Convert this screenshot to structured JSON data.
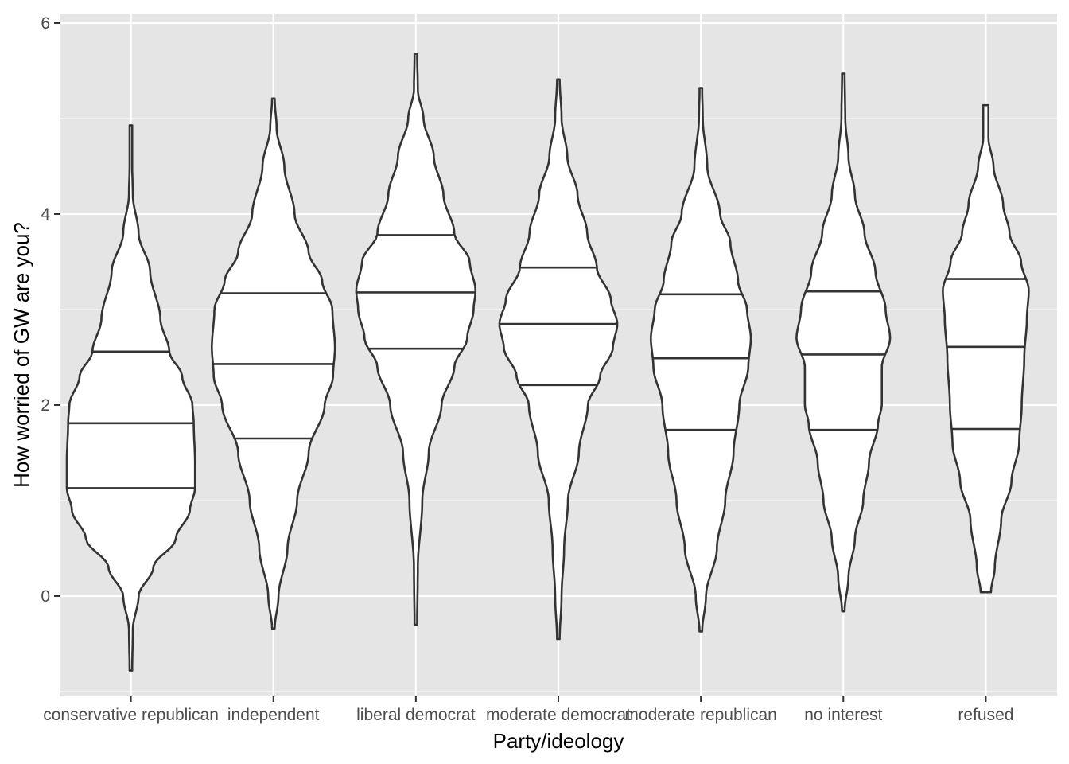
{
  "chart_data": {
    "type": "violin",
    "xlabel": "Party/ideology",
    "ylabel": "How worried of GW are you?",
    "ylim": [
      -1.05,
      6.1
    ],
    "y_ticks": [
      0,
      2,
      4,
      6
    ],
    "y_minor_ticks": [
      -1,
      1,
      3,
      5
    ],
    "grid": true,
    "legend": "none",
    "draw_quantiles": [
      0.25,
      0.5,
      0.75
    ],
    "categories": [
      "conservative republican",
      "independent",
      "liberal democrat",
      "moderate democrat",
      "moderate republican",
      "no interest",
      "refused"
    ],
    "series": [
      {
        "category": "conservative republican",
        "min": -0.78,
        "max": 4.93,
        "quantiles": [
          1.13,
          1.81,
          2.56
        ],
        "density": [
          [
            -0.78,
            0.02
          ],
          [
            -0.35,
            0.03
          ],
          [
            0.0,
            0.12
          ],
          [
            0.3,
            0.35
          ],
          [
            0.6,
            0.7
          ],
          [
            0.9,
            0.92
          ],
          [
            1.13,
            1.0
          ],
          [
            1.4,
            1.0
          ],
          [
            1.81,
            0.98
          ],
          [
            2.0,
            0.96
          ],
          [
            2.3,
            0.8
          ],
          [
            2.56,
            0.6
          ],
          [
            2.9,
            0.46
          ],
          [
            3.4,
            0.3
          ],
          [
            3.8,
            0.12
          ],
          [
            4.2,
            0.03
          ],
          [
            4.5,
            0.02
          ],
          [
            4.93,
            0.02
          ]
        ]
      },
      {
        "category": "independent",
        "min": -0.34,
        "max": 5.21,
        "quantiles": [
          1.65,
          2.43,
          3.17
        ],
        "density": [
          [
            -0.34,
            0.02
          ],
          [
            0.0,
            0.08
          ],
          [
            0.5,
            0.22
          ],
          [
            1.0,
            0.37
          ],
          [
            1.5,
            0.55
          ],
          [
            2.0,
            0.8
          ],
          [
            2.3,
            0.93
          ],
          [
            2.6,
            0.96
          ],
          [
            3.0,
            0.92
          ],
          [
            3.3,
            0.76
          ],
          [
            3.6,
            0.55
          ],
          [
            4.0,
            0.33
          ],
          [
            4.5,
            0.17
          ],
          [
            4.9,
            0.05
          ],
          [
            5.21,
            0.02
          ]
        ]
      },
      {
        "category": "liberal democrat",
        "min": -0.3,
        "max": 5.68,
        "quantiles": [
          2.59,
          3.18,
          3.78
        ],
        "density": [
          [
            -0.3,
            0.02
          ],
          [
            0.3,
            0.03
          ],
          [
            1.0,
            0.1
          ],
          [
            1.5,
            0.2
          ],
          [
            2.0,
            0.4
          ],
          [
            2.4,
            0.6
          ],
          [
            2.7,
            0.8
          ],
          [
            3.0,
            0.9
          ],
          [
            3.2,
            0.93
          ],
          [
            3.5,
            0.84
          ],
          [
            3.8,
            0.6
          ],
          [
            4.2,
            0.43
          ],
          [
            4.6,
            0.28
          ],
          [
            5.0,
            0.12
          ],
          [
            5.3,
            0.03
          ],
          [
            5.68,
            0.02
          ]
        ]
      },
      {
        "category": "moderate democrat",
        "min": -0.45,
        "max": 5.41,
        "quantiles": [
          2.21,
          2.85,
          3.44
        ],
        "density": [
          [
            -0.45,
            0.02
          ],
          [
            0.0,
            0.05
          ],
          [
            0.5,
            0.09
          ],
          [
            1.0,
            0.15
          ],
          [
            1.5,
            0.32
          ],
          [
            2.0,
            0.46
          ],
          [
            2.3,
            0.65
          ],
          [
            2.6,
            0.85
          ],
          [
            2.85,
            0.92
          ],
          [
            3.1,
            0.82
          ],
          [
            3.44,
            0.6
          ],
          [
            3.8,
            0.45
          ],
          [
            4.2,
            0.3
          ],
          [
            4.6,
            0.14
          ],
          [
            5.0,
            0.05
          ],
          [
            5.41,
            0.02
          ]
        ]
      },
      {
        "category": "moderate republican",
        "min": -0.37,
        "max": 5.32,
        "quantiles": [
          1.74,
          2.49,
          3.16
        ],
        "density": [
          [
            -0.37,
            0.02
          ],
          [
            0.0,
            0.08
          ],
          [
            0.5,
            0.25
          ],
          [
            1.0,
            0.38
          ],
          [
            1.5,
            0.51
          ],
          [
            2.0,
            0.6
          ],
          [
            2.4,
            0.74
          ],
          [
            2.7,
            0.78
          ],
          [
            3.0,
            0.72
          ],
          [
            3.3,
            0.58
          ],
          [
            3.7,
            0.46
          ],
          [
            4.0,
            0.3
          ],
          [
            4.5,
            0.1
          ],
          [
            5.0,
            0.03
          ],
          [
            5.32,
            0.02
          ]
        ]
      },
      {
        "category": "no interest",
        "min": -0.16,
        "max": 5.47,
        "quantiles": [
          1.74,
          2.53,
          3.19
        ],
        "density": [
          [
            -0.16,
            0.02
          ],
          [
            0.2,
            0.08
          ],
          [
            0.6,
            0.18
          ],
          [
            1.0,
            0.31
          ],
          [
            1.4,
            0.4
          ],
          [
            1.8,
            0.54
          ],
          [
            2.0,
            0.6
          ],
          [
            2.4,
            0.6
          ],
          [
            2.7,
            0.73
          ],
          [
            3.0,
            0.66
          ],
          [
            3.4,
            0.5
          ],
          [
            3.8,
            0.33
          ],
          [
            4.2,
            0.18
          ],
          [
            4.6,
            0.08
          ],
          [
            5.0,
            0.03
          ],
          [
            5.47,
            0.02
          ]
        ]
      },
      {
        "category": "refused",
        "min": 0.04,
        "max": 5.14,
        "quantiles": [
          1.75,
          2.61,
          3.32
        ],
        "density": [
          [
            0.04,
            0.08
          ],
          [
            0.3,
            0.14
          ],
          [
            0.8,
            0.24
          ],
          [
            1.2,
            0.4
          ],
          [
            1.6,
            0.52
          ],
          [
            2.0,
            0.56
          ],
          [
            2.5,
            0.6
          ],
          [
            2.9,
            0.64
          ],
          [
            3.2,
            0.67
          ],
          [
            3.5,
            0.55
          ],
          [
            3.8,
            0.37
          ],
          [
            4.1,
            0.27
          ],
          [
            4.5,
            0.12
          ],
          [
            4.8,
            0.04
          ],
          [
            5.14,
            0.04
          ]
        ]
      }
    ]
  }
}
